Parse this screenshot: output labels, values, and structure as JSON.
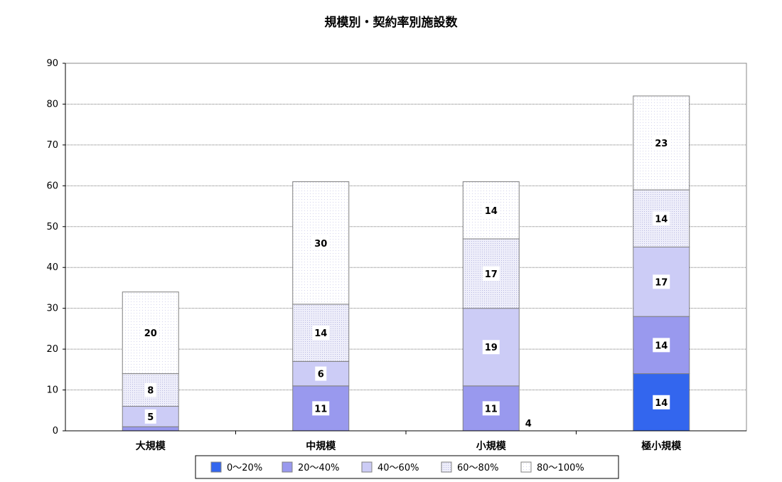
{
  "chart_data": {
    "type": "bar",
    "stacked": true,
    "title": "規模別・契約率別施設数",
    "categories": [
      "大規模",
      "中規模",
      "小規模",
      "極小規模"
    ],
    "ylim": [
      0,
      90
    ],
    "yticks": [
      0,
      10,
      20,
      30,
      40,
      50,
      60,
      70,
      80,
      90
    ],
    "grid": true,
    "legend_position": "bottom",
    "series": [
      {
        "name": "0〜20%",
        "color": "#3366ee",
        "values": [
          0,
          0,
          0,
          14
        ]
      },
      {
        "name": "20〜40%",
        "color": "#9999ee",
        "values": [
          1,
          11,
          11,
          14
        ]
      },
      {
        "name": "40〜60%",
        "color": "#ccccf6",
        "values": [
          5,
          6,
          19,
          17
        ]
      },
      {
        "name": "60〜80%",
        "color": "#e6e6f8",
        "values": [
          8,
          14,
          17,
          14
        ]
      },
      {
        "name": "80〜100%",
        "color": "#ffffff",
        "values": [
          20,
          30,
          14,
          23
        ]
      }
    ],
    "data_labels": [
      [
        "",
        "",
        "5",
        "8",
        "20"
      ],
      [
        "",
        "11",
        "6",
        "14",
        "30"
      ],
      [
        "",
        "11",
        "19",
        "17",
        "14"
      ],
      [
        "14",
        "14",
        "17",
        "14",
        "23"
      ]
    ],
    "extra_labels": [
      {
        "category_index": 1,
        "text": "4"
      }
    ]
  }
}
